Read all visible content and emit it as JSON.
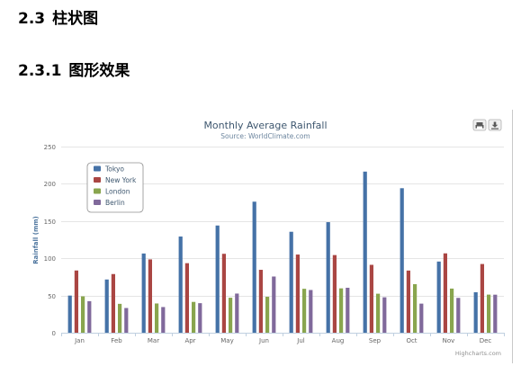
{
  "document": {
    "section": {
      "number": "2.3",
      "title": "柱状图"
    },
    "subsection": {
      "number": "2.3.1",
      "title": "图形效果"
    }
  },
  "toolbar": {
    "print_icon": "printer-icon",
    "export_icon": "download-icon"
  },
  "credits": "Highcharts.com",
  "colors": {
    "Tokyo": "#4572a7",
    "New York": "#aa4643",
    "London": "#89a54e",
    "Berlin": "#80699b"
  },
  "chart_data": {
    "type": "bar",
    "title": "Monthly Average Rainfall",
    "subtitle": "Source: WorldClimate.com",
    "ylabel": "Rainfall (mm)",
    "xlabel": "",
    "ylim": [
      0,
      250
    ],
    "yticks": [
      0,
      50,
      100,
      150,
      200,
      250
    ],
    "grid": true,
    "legend_position": "top-left",
    "categories": [
      "Jan",
      "Feb",
      "Mar",
      "Apr",
      "May",
      "Jun",
      "Jul",
      "Aug",
      "Sep",
      "Oct",
      "Nov",
      "Dec"
    ],
    "series": [
      {
        "name": "Tokyo",
        "values": [
          49.9,
          71.5,
          106.4,
          129.2,
          144.0,
          176.0,
          135.6,
          148.5,
          216.4,
          194.1,
          95.6,
          54.4
        ]
      },
      {
        "name": "New York",
        "values": [
          83.6,
          78.8,
          98.5,
          93.4,
          106.0,
          84.5,
          105.0,
          104.3,
          91.2,
          83.5,
          106.6,
          92.3
        ]
      },
      {
        "name": "London",
        "values": [
          48.9,
          38.8,
          39.3,
          41.4,
          47.0,
          48.3,
          59.0,
          59.6,
          52.4,
          65.2,
          59.3,
          51.2
        ]
      },
      {
        "name": "Berlin",
        "values": [
          42.4,
          33.2,
          34.5,
          39.7,
          52.6,
          75.5,
          57.4,
          60.4,
          47.6,
          39.1,
          46.8,
          51.1
        ]
      }
    ]
  }
}
